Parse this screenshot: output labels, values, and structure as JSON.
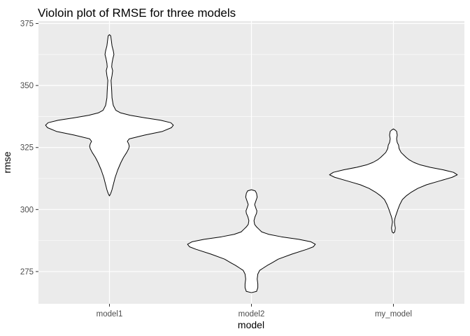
{
  "chart_data": {
    "type": "violin",
    "title": "Violoin plot of RMSE for three models",
    "xlabel": "model",
    "ylabel": "rmse",
    "categories": [
      "model1",
      "model2",
      "my_model"
    ],
    "ylim": [
      262,
      376
    ],
    "yticks": [
      275,
      300,
      325,
      350,
      375
    ],
    "grid": true,
    "background": "#ebebeb",
    "gridline_color": "#ffffff",
    "violin_fill": "#ffffff",
    "violin_outline": "#000000",
    "violins": [
      {
        "category": "model1",
        "min": 305.5,
        "max": 370.5,
        "profile": [
          [
            305.5,
            0.0
          ],
          [
            306.5,
            0.02
          ],
          [
            308,
            0.04
          ],
          [
            310,
            0.06
          ],
          [
            313,
            0.09
          ],
          [
            316,
            0.13
          ],
          [
            319,
            0.18
          ],
          [
            321,
            0.22
          ],
          [
            323,
            0.27
          ],
          [
            324.5,
            0.3
          ],
          [
            325.5,
            0.31
          ],
          [
            326.5,
            0.3
          ],
          [
            327.5,
            0.28
          ],
          [
            328.5,
            0.31
          ],
          [
            330,
            0.55
          ],
          [
            331.5,
            0.83
          ],
          [
            333,
            0.97
          ],
          [
            334,
            1.0
          ],
          [
            335,
            0.96
          ],
          [
            336,
            0.8
          ],
          [
            337,
            0.55
          ],
          [
            338,
            0.32
          ],
          [
            339,
            0.17
          ],
          [
            340,
            0.1
          ],
          [
            342,
            0.06
          ],
          [
            345,
            0.04
          ],
          [
            348,
            0.035
          ],
          [
            350,
            0.03
          ],
          [
            352,
            0.025
          ],
          [
            354,
            0.04
          ],
          [
            356,
            0.05
          ],
          [
            357.5,
            0.035
          ],
          [
            359,
            0.04
          ],
          [
            361,
            0.055
          ],
          [
            362.5,
            0.07
          ],
          [
            364,
            0.06
          ],
          [
            366,
            0.04
          ],
          [
            368,
            0.03
          ],
          [
            370,
            0.02
          ],
          [
            370.5,
            0.0
          ]
        ]
      },
      {
        "category": "model2",
        "min": 266.5,
        "max": 308,
        "profile": [
          [
            266.5,
            0.0
          ],
          [
            267,
            0.08
          ],
          [
            268.5,
            0.1
          ],
          [
            270,
            0.1
          ],
          [
            272,
            0.09
          ],
          [
            274,
            0.1
          ],
          [
            275.5,
            0.13
          ],
          [
            276.5,
            0.19
          ],
          [
            277.5,
            0.25
          ],
          [
            278.5,
            0.32
          ],
          [
            280,
            0.42
          ],
          [
            282,
            0.63
          ],
          [
            284,
            0.87
          ],
          [
            285,
            0.97
          ],
          [
            286,
            1.0
          ],
          [
            287,
            0.93
          ],
          [
            288,
            0.74
          ],
          [
            289,
            0.47
          ],
          [
            290,
            0.27
          ],
          [
            291,
            0.16
          ],
          [
            292,
            0.12
          ],
          [
            293,
            0.08
          ],
          [
            294,
            0.05
          ],
          [
            295.5,
            0.04
          ],
          [
            297,
            0.055
          ],
          [
            298.5,
            0.08
          ],
          [
            299.5,
            0.085
          ],
          [
            300.5,
            0.07
          ],
          [
            302,
            0.05
          ],
          [
            303.5,
            0.07
          ],
          [
            305,
            0.09
          ],
          [
            306.5,
            0.08
          ],
          [
            307.5,
            0.06
          ],
          [
            308,
            0.0
          ]
        ]
      },
      {
        "category": "my_model",
        "min": 290.5,
        "max": 332.5,
        "profile": [
          [
            290.5,
            0.0
          ],
          [
            291,
            0.02
          ],
          [
            292.5,
            0.03
          ],
          [
            294,
            0.02
          ],
          [
            295,
            0.015
          ],
          [
            296,
            0.02
          ],
          [
            297,
            0.03
          ],
          [
            298.5,
            0.05
          ],
          [
            300,
            0.07
          ],
          [
            302,
            0.1
          ],
          [
            304,
            0.14
          ],
          [
            305.5,
            0.2
          ],
          [
            307,
            0.28
          ],
          [
            308.5,
            0.38
          ],
          [
            310,
            0.52
          ],
          [
            311.5,
            0.72
          ],
          [
            313,
            0.92
          ],
          [
            314,
            1.0
          ],
          [
            315,
            0.94
          ],
          [
            316,
            0.78
          ],
          [
            317,
            0.58
          ],
          [
            318,
            0.42
          ],
          [
            319,
            0.32
          ],
          [
            320,
            0.25
          ],
          [
            321,
            0.2
          ],
          [
            322,
            0.16
          ],
          [
            323,
            0.12
          ],
          [
            324.5,
            0.09
          ],
          [
            326,
            0.08
          ],
          [
            327,
            0.06
          ],
          [
            328.5,
            0.05
          ],
          [
            330,
            0.06
          ],
          [
            331.5,
            0.05
          ],
          [
            332,
            0.03
          ],
          [
            332.5,
            0.0
          ]
        ]
      }
    ]
  }
}
